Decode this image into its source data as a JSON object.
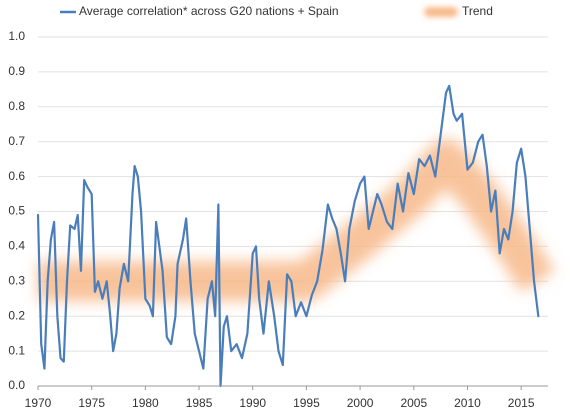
{
  "chart_data": {
    "type": "line",
    "series": [
      {
        "name": "Average correlation* across G20 nations + Spain",
        "color": "#4a7ebb",
        "line_width": 2.2,
        "x": [
          1970.0,
          1970.3,
          1970.6,
          1970.9,
          1971.2,
          1971.5,
          1971.8,
          1972.1,
          1972.4,
          1972.7,
          1973.0,
          1973.4,
          1973.7,
          1974.0,
          1974.3,
          1974.6,
          1975.0,
          1975.3,
          1975.6,
          1976.0,
          1976.4,
          1976.7,
          1977.0,
          1977.3,
          1977.6,
          1978.0,
          1978.4,
          1978.8,
          1979.0,
          1979.3,
          1979.6,
          1980.0,
          1980.4,
          1980.7,
          1981.0,
          1981.3,
          1981.6,
          1982.0,
          1982.4,
          1982.8,
          1983.0,
          1983.5,
          1983.8,
          1984.2,
          1984.6,
          1985.0,
          1985.4,
          1985.8,
          1986.2,
          1986.5,
          1986.8,
          1987.0,
          1987.3,
          1987.6,
          1988.0,
          1988.5,
          1989.0,
          1989.5,
          1990.0,
          1990.3,
          1990.6,
          1991.0,
          1991.5,
          1992.0,
          1992.4,
          1992.8,
          1993.2,
          1993.6,
          1994.0,
          1994.5,
          1995.0,
          1995.5,
          1996.0,
          1996.5,
          1997.0,
          1997.4,
          1997.8,
          1998.2,
          1998.6,
          1999.0,
          1999.5,
          2000.0,
          2000.4,
          2000.8,
          2001.2,
          2001.6,
          2002.0,
          2002.5,
          2003.0,
          2003.5,
          2004.0,
          2004.5,
          2005.0,
          2005.5,
          2006.0,
          2006.5,
          2007.0,
          2007.5,
          2008.0,
          2008.3,
          2008.7,
          2009.0,
          2009.5,
          2010.0,
          2010.5,
          2011.0,
          2011.4,
          2011.8,
          2012.2,
          2012.6,
          2013.0,
          2013.4,
          2013.8,
          2014.2,
          2014.6,
          2015.0,
          2015.4,
          2015.8,
          2016.2,
          2016.6
        ],
        "values": [
          0.49,
          0.12,
          0.05,
          0.3,
          0.42,
          0.47,
          0.2,
          0.08,
          0.07,
          0.3,
          0.46,
          0.45,
          0.49,
          0.33,
          0.59,
          0.57,
          0.55,
          0.27,
          0.3,
          0.25,
          0.3,
          0.21,
          0.1,
          0.15,
          0.28,
          0.35,
          0.3,
          0.55,
          0.63,
          0.6,
          0.5,
          0.25,
          0.23,
          0.2,
          0.47,
          0.4,
          0.33,
          0.14,
          0.12,
          0.2,
          0.35,
          0.42,
          0.48,
          0.3,
          0.15,
          0.1,
          0.05,
          0.25,
          0.3,
          0.2,
          0.52,
          0.0,
          0.17,
          0.2,
          0.1,
          0.12,
          0.08,
          0.15,
          0.38,
          0.4,
          0.25,
          0.15,
          0.3,
          0.2,
          0.1,
          0.06,
          0.32,
          0.3,
          0.2,
          0.24,
          0.2,
          0.26,
          0.3,
          0.39,
          0.52,
          0.48,
          0.45,
          0.38,
          0.3,
          0.45,
          0.53,
          0.58,
          0.6,
          0.45,
          0.5,
          0.55,
          0.52,
          0.47,
          0.45,
          0.58,
          0.5,
          0.61,
          0.55,
          0.65,
          0.63,
          0.66,
          0.6,
          0.72,
          0.84,
          0.86,
          0.78,
          0.76,
          0.78,
          0.62,
          0.64,
          0.7,
          0.72,
          0.63,
          0.5,
          0.56,
          0.38,
          0.45,
          0.42,
          0.5,
          0.64,
          0.68,
          0.6,
          0.45,
          0.3,
          0.2
        ]
      },
      {
        "name": "Trend",
        "color": "#f7b98a",
        "line_width": 40,
        "x": [
          1970,
          1995,
          2000,
          2005,
          2008,
          2011,
          2014,
          2016.6
        ],
        "values": [
          0.3,
          0.3,
          0.42,
          0.55,
          0.65,
          0.55,
          0.42,
          0.3
        ]
      }
    ],
    "xlim": [
      1970,
      2017.5
    ],
    "xticks": [
      1970,
      1975,
      1980,
      1985,
      1990,
      1995,
      2000,
      2005,
      2010,
      2015
    ],
    "ylim": [
      0,
      1.0
    ],
    "yticks": [
      {
        "value": 0,
        "label": "0.0"
      },
      0.1,
      0.2,
      0.3,
      0.4,
      0.5,
      0.6,
      0.7,
      0.8,
      0.9,
      {
        "value": 1.0,
        "label": "1.0"
      }
    ],
    "grid": true
  }
}
